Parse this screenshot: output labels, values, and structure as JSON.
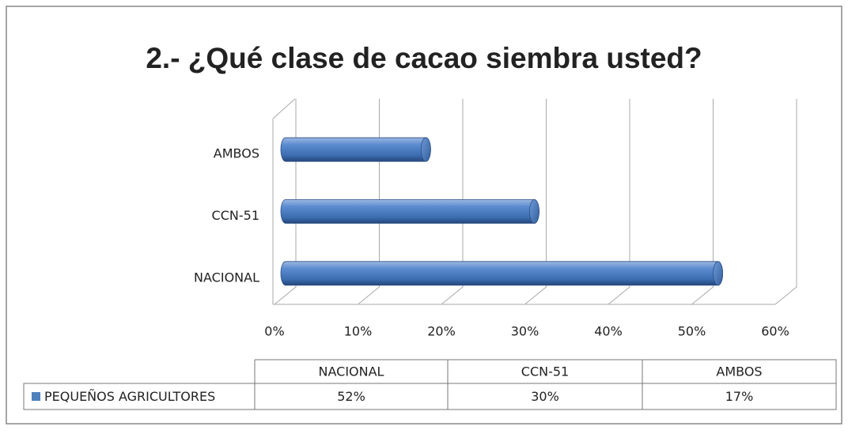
{
  "chart_data": {
    "type": "bar",
    "orientation": "horizontal",
    "title": "2.- ¿Qué clase de cacao siembra usted?",
    "categories": [
      "NACIONAL",
      "CCN-51",
      "AMBOS"
    ],
    "series": [
      {
        "name": "PEQUEÑOS AGRICULTORES",
        "color": "#4f81bd",
        "values": [
          52,
          30,
          17
        ],
        "value_labels": [
          "52%",
          "30%",
          "17%"
        ]
      }
    ],
    "xlim": [
      0,
      60
    ],
    "xticks": [
      {
        "value": 0,
        "label": "0%"
      },
      {
        "value": 10,
        "label": "10%"
      },
      {
        "value": 20,
        "label": "20%"
      },
      {
        "value": 30,
        "label": "30%"
      },
      {
        "value": 40,
        "label": "40%"
      },
      {
        "value": 50,
        "label": "50%"
      },
      {
        "value": 60,
        "label": "60%"
      }
    ],
    "grid": true,
    "data_table": true
  }
}
